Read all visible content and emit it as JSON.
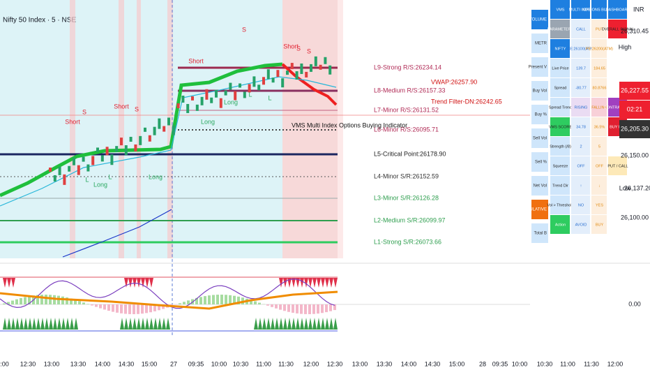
{
  "header": {
    "title": "Nifty 50 Index · 5 · NSE"
  },
  "levels": [
    "L9-Strong R/S:26234.14",
    "L8-Medium R/S:26157.33",
    "L7-Minor R/S:26131.52",
    "L6-Minor R/S:26095.71",
    "L5-Critical Point:26178.90",
    "L4-Minor S/R:26152.59",
    "L3-Minor S/R:26126.28",
    "L2-Medium S/R:26099.97",
    "L1-Strong S/R:26073.66"
  ],
  "overlay": {
    "vwap": "VWAP:26257.90",
    "trend_filter": "Trend Filter-DN:26242.65",
    "indicator_name": "VMS Multi Index Options Buying Indicator"
  },
  "markers": [
    "Short",
    "S",
    "Short",
    "S",
    "Short",
    "S",
    "Short",
    "S",
    "S",
    "Long",
    "Long",
    "Long",
    "Long",
    "L",
    "L",
    "L",
    "L"
  ],
  "volume_panel": [
    "VMS VOLUME",
    "METR",
    "Present V",
    "Buy Vol",
    "Buy %",
    "Sell Vol",
    "Sell %",
    "Net Vol",
    "CUMULATIVE",
    "Total B"
  ],
  "dashboard": {
    "rows": [
      [
        "VMS",
        "MULTI INDEX",
        "OPTIONS BUYING",
        "DASHBOARD"
      ],
      [
        "PARAMETERS",
        "CALL",
        "PUT",
        "OVERALL SIGNAL"
      ],
      [
        "NIFTY",
        "CE:26100(ATM)",
        "PE:26200(ATM)"
      ],
      [
        "Live Price",
        "139.7",
        "184.65"
      ],
      [
        "Spread",
        "-80.77",
        "80.8766"
      ],
      [
        "Spread Trend",
        "-4.3",
        "RISING",
        "FALLING",
        "CONTRACTING"
      ],
      [
        "VMS SCORE",
        "34.78",
        "36.5%",
        "BUY PUT"
      ],
      [
        "Strength (/8)",
        "2",
        "5"
      ],
      [
        "Squeeze",
        "OFF",
        "OFF",
        "PUT / CALL"
      ],
      [
        "Trend Dir",
        "↑",
        "↓"
      ],
      [
        "Vol > Threshold",
        "NO",
        "YES"
      ],
      [
        "Action",
        "AVOID",
        "BUY"
      ]
    ]
  },
  "price_axis": {
    "currency": "INR",
    "labels": [
      "26,310.45",
      "High",
      "26,227.55",
      "02:21",
      "26,205.30",
      "26,150.00",
      "Low",
      "26,137.20",
      "26,100.00",
      "0.00"
    ]
  },
  "time_axis": [
    "2:00",
    "12:30",
    "13:00",
    "13:30",
    "14:00",
    "14:30",
    "15:00",
    "27",
    "09:35",
    "10:00",
    "10:30",
    "11:00",
    "11:30",
    "12:00",
    "12:30",
    "13:00",
    "13:30",
    "14:00",
    "14:30",
    "15:00",
    "28",
    "09:35",
    "10:00",
    "10:30",
    "11:00",
    "11:30",
    "12:00"
  ]
}
